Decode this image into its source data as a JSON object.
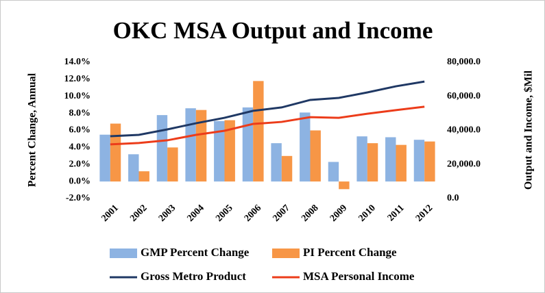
{
  "chart_data": {
    "type": "bar",
    "title": "OKC MSA Output and Income",
    "y_label": "Percent Change, Annual",
    "y2_label": "Output and Income, $Mil",
    "categories": [
      "2001",
      "2002",
      "2003",
      "2004",
      "2005",
      "2006",
      "2007",
      "2008",
      "2009",
      "2010",
      "2011",
      "2012"
    ],
    "series": [
      {
        "name": "GMP Percent Change",
        "type": "bar",
        "color": "#8db3e2",
        "values": [
          5.5,
          3.2,
          7.8,
          8.6,
          7.1,
          8.7,
          4.5,
          8.1,
          2.3,
          5.3,
          5.2,
          4.9
        ]
      },
      {
        "name": "PI Percent Change",
        "type": "bar",
        "color": "#f79646",
        "values": [
          6.8,
          1.2,
          4.0,
          8.4,
          7.2,
          11.8,
          3.0,
          6.0,
          -0.9,
          4.5,
          4.3,
          4.7
        ]
      },
      {
        "name": "Gross Metro Product",
        "type": "line",
        "axis": "y2",
        "color": "#1f3864",
        "values": [
          36600,
          37400,
          40600,
          44200,
          47400,
          51500,
          53500,
          57900,
          59100,
          62300,
          65900,
          68700
        ]
      },
      {
        "name": "MSA Personal Income",
        "type": "line",
        "axis": "y2",
        "color": "#ec3c1a",
        "values": [
          31800,
          32600,
          34200,
          37400,
          39800,
          43800,
          45000,
          47800,
          47400,
          49800,
          51900,
          53900
        ]
      }
    ],
    "ylim": [
      -2,
      14
    ],
    "yticks": [
      {
        "value": -2,
        "label": "-2.0%"
      },
      {
        "value": 0,
        "label": "0.0%"
      },
      {
        "value": 2,
        "label": "2.0%"
      },
      {
        "value": 4,
        "label": "4.0%"
      },
      {
        "value": 6,
        "label": "6.0%"
      },
      {
        "value": 8,
        "label": "8.0%"
      },
      {
        "value": 10,
        "label": "10.0%"
      },
      {
        "value": 12,
        "label": "12.0%"
      },
      {
        "value": 14,
        "label": "14.0%"
      }
    ],
    "y2lim": [
      0,
      80000
    ],
    "y2ticks": [
      {
        "value": 0,
        "label": "0.0"
      },
      {
        "value": 20000,
        "label": "20,000.0"
      },
      {
        "value": 40000,
        "label": "40,000.0"
      },
      {
        "value": 60000,
        "label": "60,000.0"
      },
      {
        "value": 80000,
        "label": "80,000.0"
      }
    ],
    "grid": false
  }
}
